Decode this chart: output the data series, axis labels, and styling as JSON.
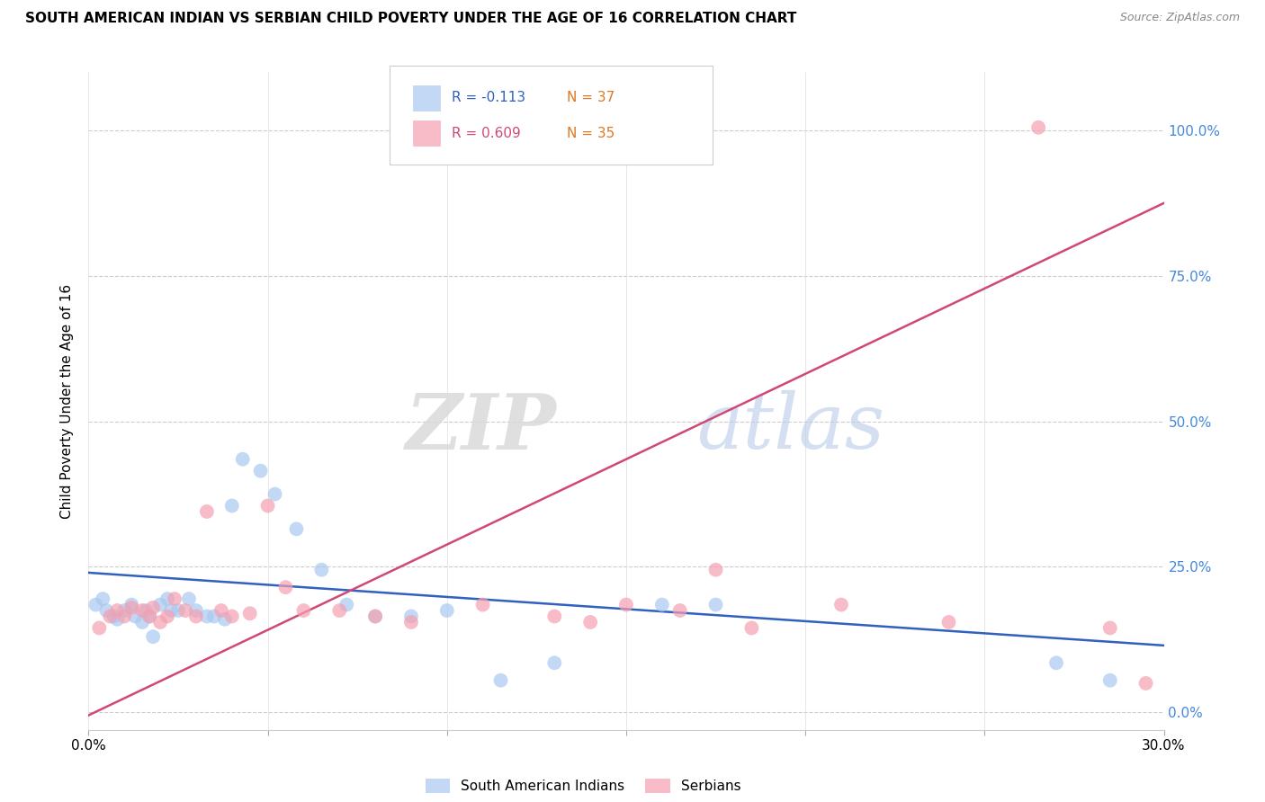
{
  "title": "SOUTH AMERICAN INDIAN VS SERBIAN CHILD POVERTY UNDER THE AGE OF 16 CORRELATION CHART",
  "source": "Source: ZipAtlas.com",
  "ylabel": "Child Poverty Under the Age of 16",
  "xlim": [
    0.0,
    0.3
  ],
  "ylim": [
    -0.03,
    1.1
  ],
  "ytick_labels": [
    "0.0%",
    "25.0%",
    "50.0%",
    "75.0%",
    "100.0%"
  ],
  "ytick_values": [
    0.0,
    0.25,
    0.5,
    0.75,
    1.0
  ],
  "xtick_labels": [
    "0.0%",
    "",
    "",
    "",
    "",
    "",
    "30.0%"
  ],
  "xtick_values": [
    0.0,
    0.05,
    0.1,
    0.15,
    0.2,
    0.25,
    0.3
  ],
  "blue_label": "South American Indians",
  "pink_label": "Serbians",
  "blue_R": "R = -0.113",
  "blue_N": "N = 37",
  "pink_R": "R = 0.609",
  "pink_N": "N = 35",
  "blue_color": "#A8C8F0",
  "pink_color": "#F4A0B0",
  "blue_line_color": "#3060C0",
  "pink_line_color": "#D04878",
  "blue_N_color": "#E07820",
  "pink_N_color": "#E07820",
  "watermark_zip": "ZIP",
  "watermark_atlas": "atlas",
  "blue_scatter_x": [
    0.002,
    0.004,
    0.005,
    0.007,
    0.008,
    0.01,
    0.012,
    0.013,
    0.015,
    0.016,
    0.017,
    0.018,
    0.02,
    0.022,
    0.023,
    0.025,
    0.028,
    0.03,
    0.033,
    0.035,
    0.038,
    0.04,
    0.043,
    0.048,
    0.052,
    0.058,
    0.065,
    0.072,
    0.08,
    0.09,
    0.1,
    0.115,
    0.13,
    0.16,
    0.175,
    0.27,
    0.285
  ],
  "blue_scatter_y": [
    0.185,
    0.195,
    0.175,
    0.165,
    0.16,
    0.175,
    0.185,
    0.165,
    0.155,
    0.175,
    0.165,
    0.13,
    0.185,
    0.195,
    0.175,
    0.175,
    0.195,
    0.175,
    0.165,
    0.165,
    0.16,
    0.355,
    0.435,
    0.415,
    0.375,
    0.315,
    0.245,
    0.185,
    0.165,
    0.165,
    0.175,
    0.055,
    0.085,
    0.185,
    0.185,
    0.085,
    0.055
  ],
  "pink_scatter_x": [
    0.003,
    0.006,
    0.008,
    0.01,
    0.012,
    0.015,
    0.017,
    0.018,
    0.02,
    0.022,
    0.024,
    0.027,
    0.03,
    0.033,
    0.037,
    0.04,
    0.045,
    0.05,
    0.055,
    0.06,
    0.07,
    0.08,
    0.09,
    0.11,
    0.13,
    0.14,
    0.15,
    0.165,
    0.175,
    0.185,
    0.21,
    0.24,
    0.265,
    0.285,
    0.295
  ],
  "pink_scatter_y": [
    0.145,
    0.165,
    0.175,
    0.165,
    0.18,
    0.175,
    0.165,
    0.18,
    0.155,
    0.165,
    0.195,
    0.175,
    0.165,
    0.345,
    0.175,
    0.165,
    0.17,
    0.355,
    0.215,
    0.175,
    0.175,
    0.165,
    0.155,
    0.185,
    0.165,
    0.155,
    0.185,
    0.175,
    0.245,
    0.145,
    0.185,
    0.155,
    1.005,
    0.145,
    0.05
  ],
  "blue_trend_x": [
    0.0,
    0.3
  ],
  "blue_trend_y": [
    0.24,
    0.115
  ],
  "pink_trend_x": [
    0.0,
    0.3
  ],
  "pink_trend_y": [
    -0.005,
    0.875
  ]
}
